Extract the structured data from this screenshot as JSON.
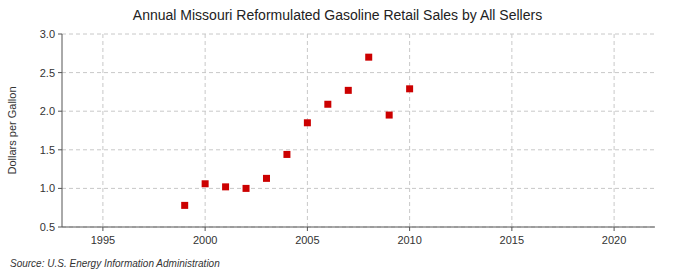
{
  "chart_data": {
    "type": "scatter",
    "title": "Annual Missouri Reformulated Gasoline Retail Sales by All Sellers",
    "y_label": "Dollars per Gallon",
    "annotations": [
      "Source: U.S. Energy Information Administration"
    ],
    "x": [
      1999,
      2000,
      2001,
      2002,
      2003,
      2004,
      2005,
      2006,
      2007,
      2008,
      2009,
      2010
    ],
    "values": [
      0.78,
      1.06,
      1.02,
      1.0,
      1.13,
      1.44,
      1.85,
      2.09,
      2.27,
      2.7,
      1.95,
      2.29
    ],
    "color": "#cc0000",
    "marker": "square",
    "xlim": [
      1993,
      2022
    ],
    "ylim": [
      0.5,
      3.0
    ],
    "xticks": [
      1995,
      2000,
      2005,
      2010,
      2015,
      2020
    ],
    "yticks": [
      0.5,
      {
        "value": 1.0,
        "label": "1.0"
      },
      1.5,
      {
        "value": 2.0,
        "label": "2.0"
      },
      2.5,
      {
        "value": 3.0,
        "label": "3.0"
      }
    ],
    "grid": true
  }
}
